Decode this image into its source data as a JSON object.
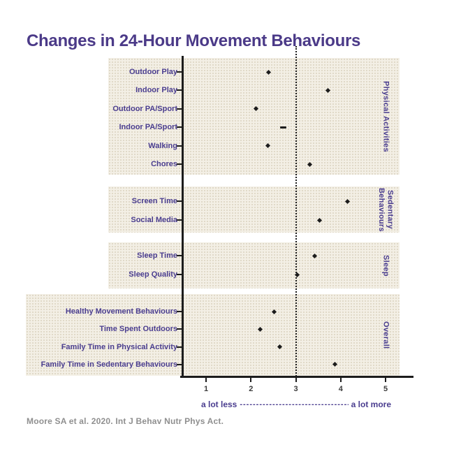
{
  "title": "Changes in 24-Hour Movement Behaviours",
  "citation": "Moore SA et al. 2020. Int J Behav Nutr Phys Act.",
  "axis": {
    "tick_labels": [
      "1",
      "2",
      "3",
      "4",
      "5"
    ],
    "min": 1,
    "max": 5,
    "caption_left": "a lot less",
    "caption_dashes": "----------------------------------",
    "caption_right": "a lot more"
  },
  "chart_data": {
    "type": "scatter",
    "orientation": "horizontal-dotplot",
    "xlim": [
      1,
      5
    ],
    "reference_line_x": 3,
    "grid": false,
    "groups": [
      {
        "name": "Physical Activities",
        "items": [
          {
            "label": "Outdoor Play",
            "value": 2.39
          },
          {
            "label": "Indoor Play",
            "value": 3.71
          },
          {
            "label": "Outdoor PA/Sport",
            "value": 2.11
          },
          {
            "label": "Indoor PA/Sport",
            "value": 2.72,
            "marker": "dash"
          },
          {
            "label": "Walking",
            "value": 2.37
          },
          {
            "label": "Chores",
            "value": 3.31
          }
        ]
      },
      {
        "name": "Sedentary Behaviours",
        "items": [
          {
            "label": "Screen Time",
            "value": 4.15
          },
          {
            "label": "Social Media",
            "value": 3.53
          }
        ]
      },
      {
        "name": "Sleep",
        "items": [
          {
            "label": "Sleep Time",
            "value": 3.42
          },
          {
            "label": "Sleep Quality",
            "value": 3.03
          }
        ]
      },
      {
        "name": "Overall",
        "items": [
          {
            "label": "Healthy Movement Behaviours",
            "value": 2.52
          },
          {
            "label": "Time Spent Outdoors",
            "value": 2.21
          },
          {
            "label": "Family Time in Physical Activity",
            "value": 2.64
          },
          {
            "label": "Family Time in Sedentary Behaviours",
            "value": 3.87
          }
        ]
      }
    ]
  },
  "colors": {
    "title": "#4b3a88",
    "category_label": "#4a3d8f",
    "group_label": "#4a3d8f",
    "caption": "#4a3d8f",
    "tick_label": "#3c3c3c",
    "axis": "#1c1c1c",
    "marker": "#1c1c1c",
    "citation": "#8f8f8f",
    "band_background": "#f3efe5",
    "band_dot": "#d9d2bf"
  }
}
